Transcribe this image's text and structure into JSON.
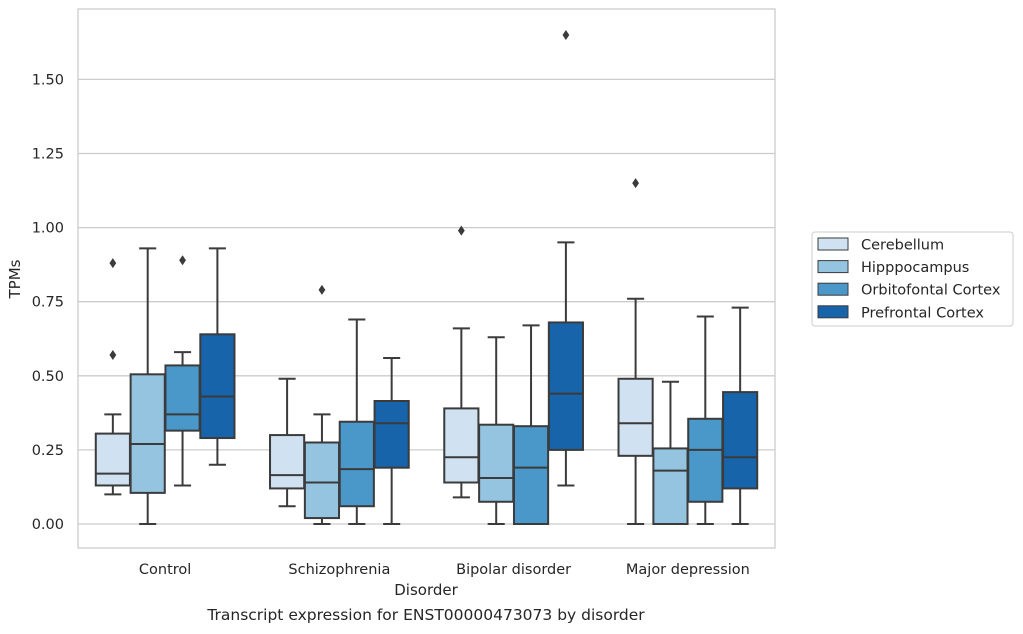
{
  "chart_data": {
    "type": "boxplot",
    "title": "",
    "caption": "Transcript expression for ENST00000473073 by disorder",
    "xlabel": "Disorder",
    "ylabel": "TPMs",
    "categories": [
      "Control",
      "Schizophrenia",
      "Bipolar disorder",
      "Major depression"
    ],
    "ylim": [
      -0.08,
      1.77
    ],
    "yticks": [
      0.0,
      0.25,
      0.5,
      0.75,
      1.0,
      1.25,
      1.5
    ],
    "ytick_labels": [
      "0.00",
      "0.25",
      "0.50",
      "0.75",
      "1.00",
      "1.25",
      "1.50"
    ],
    "grid": true,
    "legend_position": "right",
    "series": [
      {
        "name": "Cerebellum",
        "color": "#d0e1f2",
        "boxes": [
          {
            "whislo": 0.1,
            "q1": 0.13,
            "med": 0.17,
            "q3": 0.305,
            "whishi": 0.37,
            "fliers": [
              0.57,
              0.88
            ]
          },
          {
            "whislo": 0.06,
            "q1": 0.12,
            "med": 0.165,
            "q3": 0.3,
            "whishi": 0.49,
            "fliers": []
          },
          {
            "whislo": 0.09,
            "q1": 0.14,
            "med": 0.225,
            "q3": 0.39,
            "whishi": 0.66,
            "fliers": [
              0.99
            ]
          },
          {
            "whislo": 0.0,
            "q1": 0.23,
            "med": 0.34,
            "q3": 0.49,
            "whishi": 0.76,
            "fliers": [
              1.15
            ]
          }
        ]
      },
      {
        "name": "Hipppocampus",
        "color": "#94c4df",
        "boxes": [
          {
            "whislo": 0.0,
            "q1": 0.105,
            "med": 0.27,
            "q3": 0.505,
            "whishi": 0.93,
            "fliers": []
          },
          {
            "whislo": 0.0,
            "q1": 0.02,
            "med": 0.14,
            "q3": 0.275,
            "whishi": 0.37,
            "fliers": [
              0.79
            ]
          },
          {
            "whislo": 0.0,
            "q1": 0.075,
            "med": 0.155,
            "q3": 0.335,
            "whishi": 0.63,
            "fliers": []
          },
          {
            "whislo": 0.0,
            "q1": 0.0,
            "med": 0.18,
            "q3": 0.255,
            "whishi": 0.48,
            "fliers": []
          }
        ]
      },
      {
        "name": "Orbitofontal Cortex",
        "color": "#4a98c9",
        "boxes": [
          {
            "whislo": 0.13,
            "q1": 0.315,
            "med": 0.37,
            "q3": 0.535,
            "whishi": 0.58,
            "fliers": [
              0.89
            ]
          },
          {
            "whislo": 0.0,
            "q1": 0.06,
            "med": 0.185,
            "q3": 0.345,
            "whishi": 0.69,
            "fliers": []
          },
          {
            "whislo": 0.0,
            "q1": 0.0,
            "med": 0.19,
            "q3": 0.33,
            "whishi": 0.67,
            "fliers": []
          },
          {
            "whislo": 0.0,
            "q1": 0.075,
            "med": 0.25,
            "q3": 0.355,
            "whishi": 0.7,
            "fliers": []
          }
        ]
      },
      {
        "name": "Prefrontal Cortex",
        "color": "#1764ab",
        "boxes": [
          {
            "whislo": 0.2,
            "q1": 0.29,
            "med": 0.43,
            "q3": 0.64,
            "whishi": 0.93,
            "fliers": []
          },
          {
            "whislo": 0.0,
            "q1": 0.19,
            "med": 0.34,
            "q3": 0.415,
            "whishi": 0.56,
            "fliers": []
          },
          {
            "whislo": 0.13,
            "q1": 0.25,
            "med": 0.44,
            "q3": 0.68,
            "whishi": 0.95,
            "fliers": [
              1.65
            ]
          },
          {
            "whislo": 0.0,
            "q1": 0.12,
            "med": 0.225,
            "q3": 0.445,
            "whishi": 0.73,
            "fliers": []
          }
        ]
      }
    ]
  }
}
